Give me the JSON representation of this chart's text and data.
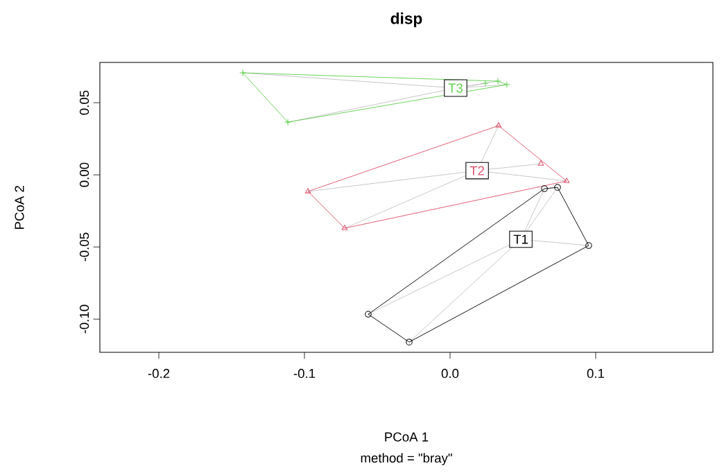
{
  "chart_data": {
    "type": "scatter",
    "title": "disp",
    "subtitle": "method = \"bray\"",
    "xlabel": "PCoA 1",
    "ylabel": "PCoA 2",
    "xlim": [
      -0.2405,
      0.1805
    ],
    "ylim": [
      -0.123,
      0.0779
    ],
    "xticks": [
      {
        "value": -0.2,
        "label": "-0.2"
      },
      {
        "value": -0.1,
        "label": "-0.1"
      },
      {
        "value": 0,
        "label": "0.0"
      },
      {
        "value": 0.1,
        "label": "0.1"
      }
    ],
    "yticks": [
      {
        "value": -0.1,
        "label": "-0.10"
      },
      {
        "value": -0.05,
        "label": "-0.05"
      },
      {
        "value": 0,
        "label": "0.00"
      },
      {
        "value": 0.05,
        "label": "0.05"
      }
    ],
    "grid": false,
    "series": [
      {
        "type": "line",
        "marker": "none",
        "color": "#000000",
        "x": [
          -0.0562,
          0.0648,
          0.0738,
          0.0952
        ],
        "values": [
          -0.0966,
          -0.0096,
          -0.0087,
          -0.049
        ]
      },
      {
        "type": "line",
        "marker": "none",
        "color": "#000000",
        "x": [
          -0.0562,
          -0.0281,
          0.0952
        ],
        "values": [
          -0.0966,
          -0.1159,
          -0.049
        ]
      },
      {
        "type": "line",
        "marker": "none",
        "color": "#df536b",
        "x": [
          -0.0976,
          0.0333,
          0.08
        ],
        "values": [
          -0.0115,
          0.0341,
          -0.0043
        ]
      },
      {
        "type": "line",
        "marker": "none",
        "color": "#df536b",
        "x": [
          -0.0976,
          -0.0724,
          0.08
        ],
        "values": [
          -0.0115,
          -0.037,
          -0.0043
        ]
      },
      {
        "type": "line",
        "marker": "none",
        "color": "#61d04f",
        "x": [
          -0.1424,
          0.0329,
          0.039
        ],
        "values": [
          0.0707,
          0.0649,
          0.0625
        ]
      },
      {
        "type": "line",
        "marker": "none",
        "color": "#61d04f",
        "x": [
          -0.1424,
          -0.1114,
          0.039
        ],
        "values": [
          0.0707,
          0.0365,
          0.0625
        ]
      },
      {
        "color": "#000000",
        "marker": "circle",
        "x": [
          0.0648,
          0.0738,
          0.0952,
          -0.0562,
          -0.0281
        ],
        "values": [
          -0.0096,
          -0.0087,
          -0.049,
          -0.0966,
          -0.1159
        ]
      },
      {
        "color": "#df536b",
        "marker": "triangle",
        "x": [
          -0.0976,
          -0.0724,
          0.0333,
          0.0624,
          0.08
        ],
        "values": [
          -0.0115,
          -0.037,
          0.0341,
          0.0077,
          -0.0043
        ]
      },
      {
        "color": "#61d04f",
        "marker": "cross",
        "x": [
          -0.1424,
          -0.1114,
          0.0243,
          0.0329,
          0.039
        ],
        "values": [
          0.0707,
          0.0365,
          0.0635,
          0.0649,
          0.0625
        ]
      }
    ],
    "annotations": [
      {
        "text": "T1",
        "x": 0.0486,
        "y": -0.0447
      },
      {
        "text": "T2",
        "x": 0.0186,
        "y": 0.0029
      },
      {
        "text": "T3",
        "x": 0.0038,
        "y": 0.0601
      }
    ]
  }
}
